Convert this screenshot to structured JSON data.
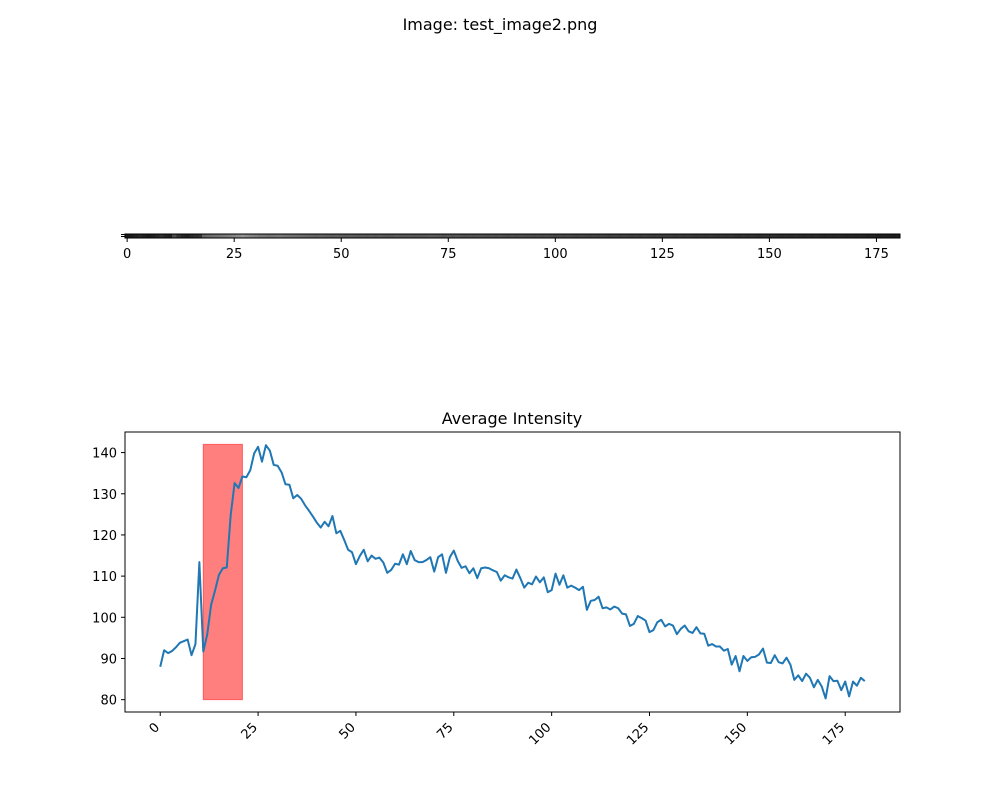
{
  "figure": {
    "suptitle": "Image: test_image2.png"
  },
  "chart_data": [
    {
      "type": "heatmap",
      "title": "",
      "xlabel": "",
      "ylabel": "",
      "xticks": [
        0,
        25,
        50,
        75,
        100,
        125,
        150,
        175
      ],
      "xlim": [
        -0.5,
        180.5
      ],
      "note_cmap": "gray",
      "strip_levels": [
        0.1,
        0.1,
        0.12,
        0.15,
        0.12,
        0.1,
        0.12,
        0.15,
        0.18,
        0.14,
        0.12,
        0.3,
        0.2,
        0.14,
        0.12,
        0.16,
        0.18,
        0.2,
        0.4,
        0.42,
        0.44,
        0.45,
        0.47,
        0.48,
        0.5,
        0.52,
        0.55,
        0.58,
        0.55,
        0.52,
        0.5,
        0.48,
        0.47,
        0.45,
        0.46,
        0.47,
        0.48,
        0.46,
        0.45,
        0.44,
        0.43,
        0.42,
        0.41,
        0.4,
        0.39,
        0.4,
        0.39,
        0.38,
        0.37,
        0.38,
        0.37,
        0.36,
        0.37,
        0.36,
        0.35,
        0.36,
        0.35,
        0.36,
        0.35,
        0.36,
        0.35,
        0.34,
        0.35,
        0.36,
        0.35,
        0.34,
        0.35,
        0.34,
        0.35,
        0.34,
        0.35,
        0.36,
        0.35,
        0.34,
        0.33,
        0.34,
        0.33,
        0.34,
        0.33,
        0.32,
        0.33,
        0.32,
        0.33,
        0.32,
        0.31,
        0.32,
        0.31,
        0.32,
        0.31,
        0.3,
        0.31,
        0.3,
        0.31,
        0.3,
        0.3,
        0.29,
        0.3,
        0.29,
        0.3,
        0.29,
        0.28,
        0.29,
        0.28,
        0.29,
        0.28,
        0.27,
        0.28,
        0.27,
        0.26,
        0.27,
        0.26,
        0.27,
        0.26,
        0.25,
        0.26,
        0.25,
        0.26,
        0.25,
        0.24,
        0.25,
        0.24,
        0.25,
        0.24,
        0.23,
        0.24,
        0.23,
        0.24,
        0.23,
        0.22,
        0.23,
        0.22,
        0.23,
        0.22,
        0.21,
        0.22,
        0.21,
        0.22,
        0.21,
        0.2,
        0.21,
        0.2,
        0.21,
        0.2,
        0.19,
        0.2,
        0.19,
        0.2,
        0.19,
        0.18,
        0.19,
        0.18,
        0.19,
        0.18,
        0.17,
        0.18,
        0.17,
        0.18,
        0.17,
        0.16,
        0.17,
        0.16,
        0.17,
        0.16,
        0.15,
        0.16,
        0.15,
        0.16,
        0.15,
        0.14,
        0.15,
        0.14,
        0.15,
        0.14,
        0.13,
        0.14,
        0.13,
        0.12,
        0.13,
        0.12,
        0.11,
        0.12
      ]
    },
    {
      "type": "line",
      "title": "Average Intensity",
      "xlabel": "",
      "ylabel": "",
      "xlim": [
        -9,
        189
      ],
      "ylim": [
        77,
        145
      ],
      "xticks": [
        0,
        25,
        50,
        75,
        100,
        125,
        150,
        175
      ],
      "yticks": [
        80,
        90,
        100,
        110,
        120,
        130,
        140
      ],
      "xtick_rotation": 45,
      "grid": false,
      "series": [
        {
          "name": "",
          "color": "#1f77b4",
          "x_start": 0,
          "x_step": 1,
          "values": [
            88.0,
            92.0,
            91.3,
            91.8,
            92.7,
            93.8,
            94.2,
            94.6,
            90.8,
            93.5,
            113.4,
            91.7,
            95.8,
            103.0,
            106.5,
            110.3,
            111.9,
            112.1,
            124.8,
            132.6,
            131.4,
            134.2,
            134.0,
            135.7,
            139.8,
            141.4,
            137.8,
            141.8,
            140.5,
            137.0,
            136.8,
            135.2,
            132.3,
            132.2,
            128.9,
            129.7,
            128.8,
            127.2,
            125.9,
            124.5,
            123.0,
            121.8,
            123.2,
            122.1,
            124.6,
            120.4,
            121.0,
            118.8,
            116.4,
            115.8,
            112.9,
            114.9,
            116.4,
            113.6,
            115.0,
            114.2,
            114.5,
            113.3,
            110.8,
            111.5,
            113.0,
            112.8,
            115.3,
            112.9,
            116.1,
            113.9,
            113.4,
            113.4,
            113.9,
            114.6,
            111.1,
            114.6,
            115.3,
            110.8,
            114.6,
            116.2,
            113.7,
            112.0,
            112.4,
            110.7,
            111.9,
            109.5,
            111.9,
            112.1,
            111.9,
            111.4,
            111.0,
            108.9,
            110.2,
            109.7,
            109.4,
            111.6,
            109.5,
            107.2,
            108.4,
            108.0,
            109.9,
            108.5,
            109.7,
            106.1,
            106.6,
            110.6,
            107.9,
            110.2,
            107.2,
            107.7,
            107.2,
            106.6,
            107.4,
            101.8,
            104.0,
            104.2,
            105.0,
            102.2,
            102.4,
            101.9,
            102.6,
            102.2,
            100.9,
            100.7,
            97.9,
            98.4,
            100.3,
            99.8,
            99.2,
            96.4,
            96.9,
            98.8,
            99.4,
            97.8,
            98.4,
            98.0,
            95.9,
            97.2,
            98.0,
            96.6,
            96.2,
            97.6,
            96.1,
            96.0,
            93.1,
            93.5,
            92.9,
            92.9,
            91.9,
            92.3,
            88.5,
            90.6,
            86.9,
            90.6,
            89.4,
            90.3,
            90.4,
            91.0,
            92.4,
            89.0,
            88.9,
            90.8,
            89.1,
            88.8,
            90.2,
            88.5,
            84.8,
            85.9,
            84.5,
            86.3,
            85.3,
            83.0,
            84.8,
            83.2,
            80.3,
            85.7,
            84.5,
            84.6,
            82.3,
            84.4,
            80.8,
            84.4,
            83.4,
            85.3,
            84.5
          ]
        }
      ],
      "highlight_span": {
        "x0": 11,
        "x1": 21,
        "y0": 80,
        "y1": 142,
        "color": "#ff0000",
        "alpha": 0.5
      }
    }
  ]
}
